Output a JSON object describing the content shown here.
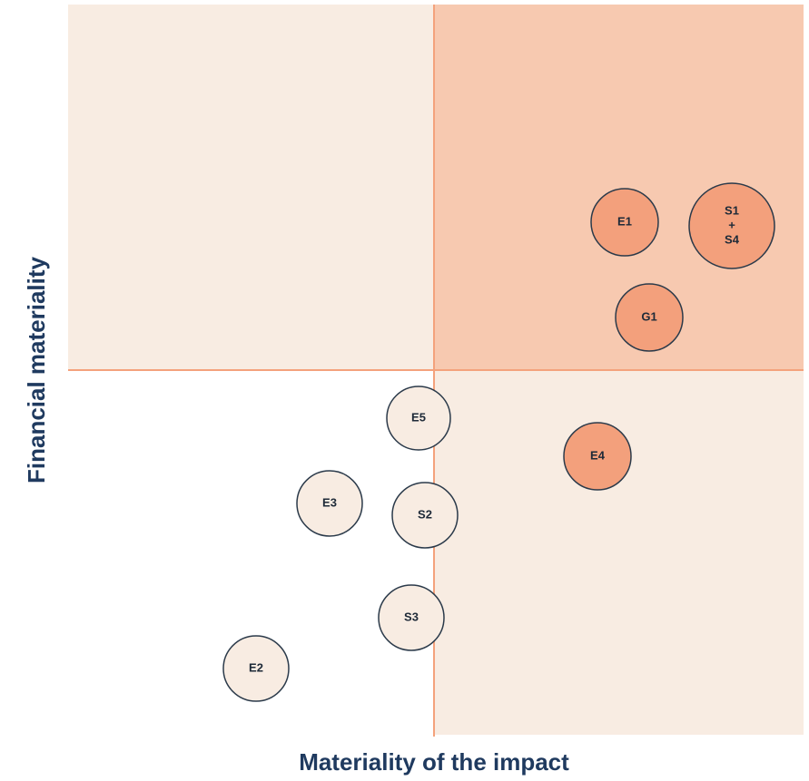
{
  "x_axis_label": "Materiality of the impact",
  "y_axis_label": "Financial materiality",
  "nodes": [
    {
      "lines": [
        "E1"
      ]
    },
    {
      "lines": [
        "S1",
        "+",
        "S4"
      ]
    },
    {
      "lines": [
        "G1"
      ]
    },
    {
      "lines": [
        "E4"
      ]
    },
    {
      "lines": [
        "E5"
      ]
    },
    {
      "lines": [
        "E3"
      ]
    },
    {
      "lines": [
        "S2"
      ]
    },
    {
      "lines": [
        "S3"
      ]
    },
    {
      "lines": [
        "E2"
      ]
    }
  ]
}
